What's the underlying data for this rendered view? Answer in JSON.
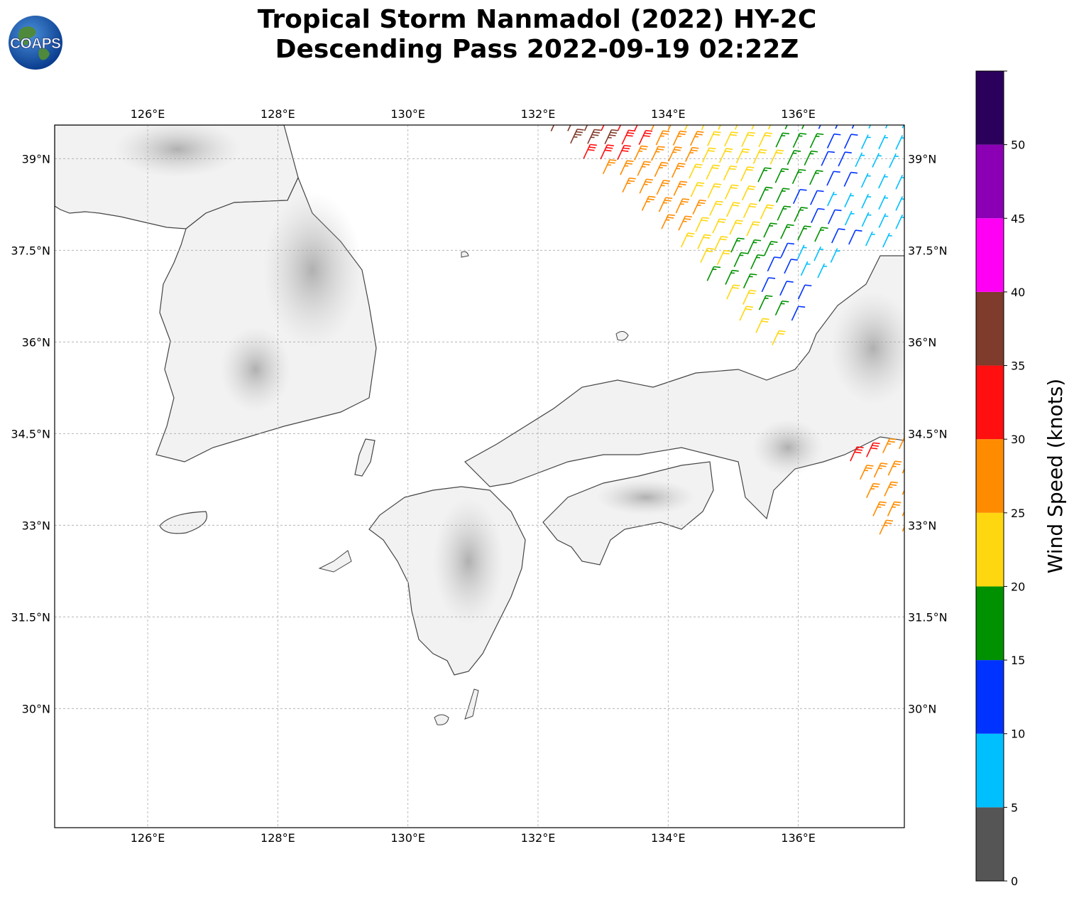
{
  "title": {
    "line1": "Tropical Storm Nanmadol (2022) HY-2C",
    "line2": "Descending Pass 2022-09-19 02:22Z"
  },
  "logo": {
    "text": "COAPS",
    "icon": "globe-icon"
  },
  "map": {
    "lon_range": [
      124.57,
      137.63
    ],
    "lat_range": [
      28.05,
      39.55
    ],
    "lon_ticks": [
      {
        "value": 126,
        "label": "126°E"
      },
      {
        "value": 128,
        "label": "128°E"
      },
      {
        "value": 130,
        "label": "130°E"
      },
      {
        "value": 132,
        "label": "132°E"
      },
      {
        "value": 134,
        "label": "134°E"
      },
      {
        "value": 136,
        "label": "136°E"
      }
    ],
    "lat_ticks": [
      {
        "value": 39,
        "label": "39°N"
      },
      {
        "value": 37.5,
        "label": "37.5°N"
      },
      {
        "value": 36,
        "label": "36°N"
      },
      {
        "value": 34.5,
        "label": "34.5°N"
      },
      {
        "value": 33,
        "label": "33°N"
      },
      {
        "value": 31.5,
        "label": "31.5°N"
      },
      {
        "value": 30,
        "label": "30°N"
      }
    ],
    "gridlines": true,
    "wind_barb_units": "knots",
    "wind_barb_rows": [
      {
        "start": [
          132.2,
          39.45
        ],
        "end": [
          137.6,
          39.5
        ],
        "count": 22,
        "speed": [
          35,
          30,
          25,
          22,
          20,
          15,
          10,
          6
        ]
      },
      {
        "start": [
          132.5,
          39.25
        ],
        "end": [
          137.5,
          39.15
        ],
        "count": 20,
        "speed": [
          37,
          32,
          27,
          23,
          21,
          17,
          12,
          8
        ]
      },
      {
        "start": [
          132.7,
          39.0
        ],
        "end": [
          137.4,
          38.85
        ],
        "count": 19,
        "speed": [
          33,
          28,
          25,
          22,
          20,
          16,
          11,
          7
        ]
      },
      {
        "start": [
          133.0,
          38.75
        ],
        "end": [
          137.5,
          38.5
        ],
        "count": 18,
        "speed": [
          29,
          27,
          24,
          22,
          19,
          15,
          10,
          7
        ]
      },
      {
        "start": [
          133.3,
          38.45
        ],
        "end": [
          137.5,
          38.15
        ],
        "count": 17,
        "speed": [
          28,
          26,
          23,
          21,
          18,
          14,
          9,
          7
        ]
      },
      {
        "start": [
          133.6,
          38.15
        ],
        "end": [
          137.5,
          37.85
        ],
        "count": 16,
        "speed": [
          27,
          25,
          22,
          20,
          17,
          12,
          8,
          6
        ]
      },
      {
        "start": [
          133.9,
          37.85
        ],
        "end": [
          137.3,
          37.55
        ],
        "count": 14,
        "speed": [
          26,
          24,
          22,
          18,
          15,
          11,
          8
        ]
      },
      {
        "start": [
          134.2,
          37.55
        ],
        "end": [
          136.5,
          37.3
        ],
        "count": 10,
        "speed": [
          23,
          22,
          19,
          16,
          12,
          9,
          7
        ]
      },
      {
        "start": [
          134.5,
          37.3
        ],
        "end": [
          136.3,
          37.05
        ],
        "count": 8,
        "speed": [
          22,
          19,
          17,
          14,
          11,
          8
        ]
      },
      {
        "start": [
          134.6,
          37.0
        ],
        "end": [
          136.0,
          36.7
        ],
        "count": 6,
        "speed": [
          19,
          17,
          15,
          13,
          11
        ]
      },
      {
        "start": [
          134.9,
          36.7
        ],
        "end": [
          135.9,
          36.35
        ],
        "count": 5,
        "speed": [
          22,
          20,
          17,
          15,
          12
        ]
      },
      {
        "start": [
          135.1,
          36.35
        ],
        "end": [
          135.6,
          35.95
        ],
        "count": 3,
        "speed": [
          23,
          22,
          21
        ]
      },
      {
        "start": [
          136.8,
          34.05
        ],
        "end": [
          137.55,
          34.25
        ],
        "count": 4,
        "speed": [
          32,
          30,
          27,
          27
        ]
      },
      {
        "start": [
          136.95,
          33.75
        ],
        "end": [
          137.6,
          33.85
        ],
        "count": 4,
        "speed": [
          28,
          27,
          27,
          26
        ]
      },
      {
        "start": [
          137.05,
          33.45
        ],
        "end": [
          137.6,
          33.5
        ],
        "count": 3,
        "speed": [
          27,
          27,
          26
        ]
      },
      {
        "start": [
          137.15,
          33.15
        ],
        "end": [
          137.6,
          33.15
        ],
        "count": 3,
        "speed": [
          27,
          26,
          26
        ]
      },
      {
        "start": [
          137.25,
          32.85
        ],
        "end": [
          137.6,
          32.9
        ],
        "count": 2,
        "speed": [
          26,
          26
        ]
      }
    ]
  },
  "colorbar": {
    "label": "Wind Speed (knots)",
    "bins": [
      {
        "min": 0,
        "max": 5,
        "color": "#555555"
      },
      {
        "min": 5,
        "max": 10,
        "color": "#00bfff"
      },
      {
        "min": 10,
        "max": 15,
        "color": "#0033ff"
      },
      {
        "min": 15,
        "max": 20,
        "color": "#009100"
      },
      {
        "min": 20,
        "max": 25,
        "color": "#ffd710"
      },
      {
        "min": 25,
        "max": 30,
        "color": "#ff8c00"
      },
      {
        "min": 30,
        "max": 35,
        "color": "#ff0f0f"
      },
      {
        "min": 35,
        "max": 40,
        "color": "#7f3b2b"
      },
      {
        "min": 40,
        "max": 45,
        "color": "#ff00f5"
      },
      {
        "min": 45,
        "max": 50,
        "color": "#8b00b5"
      },
      {
        "min": 50,
        "max": 55,
        "color": "#2a005c"
      }
    ],
    "ticks": [
      "0",
      "5",
      "10",
      "15",
      "20",
      "25",
      "30",
      "35",
      "40",
      "45",
      "50"
    ]
  },
  "land_color": "#f2f2f2",
  "coast_color": "#444444"
}
